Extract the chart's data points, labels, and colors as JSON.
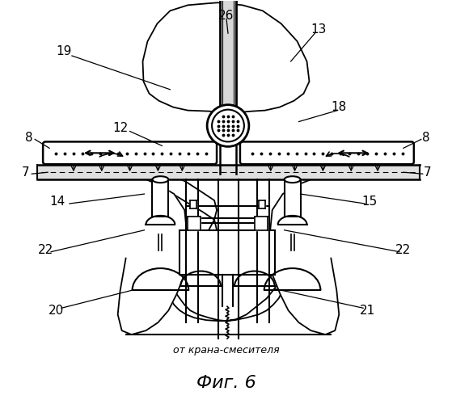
{
  "fig_label": "Фиг. 6",
  "subtitle": "от крана-смесителя",
  "background_color": "#ffffff",
  "line_color": "#000000",
  "figsize": [
    5.59,
    5.0
  ],
  "dpi": 100
}
